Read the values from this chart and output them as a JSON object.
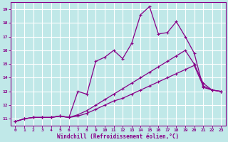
{
  "xlabel": "Windchill (Refroidissement éolien,°C)",
  "xlim": [
    -0.5,
    23.5
  ],
  "ylim": [
    10.5,
    19.5
  ],
  "xticks": [
    0,
    1,
    2,
    3,
    4,
    5,
    6,
    7,
    8,
    9,
    10,
    11,
    12,
    13,
    14,
    15,
    16,
    17,
    18,
    19,
    20,
    21,
    22,
    23
  ],
  "yticks": [
    11,
    12,
    13,
    14,
    15,
    16,
    17,
    18,
    19
  ],
  "background_color": "#c0e8e8",
  "line_color": "#880088",
  "grid_color": "#a0d0d0",
  "series": [
    {
      "x": [
        0,
        1,
        2,
        3,
        4,
        5,
        6,
        7,
        8,
        9,
        10,
        11,
        12,
        13,
        14,
        15,
        16,
        17,
        18,
        19,
        20,
        21,
        22,
        23
      ],
      "y": [
        10.8,
        11.0,
        11.1,
        11.1,
        11.1,
        11.2,
        11.1,
        13.0,
        12.8,
        15.2,
        15.5,
        16.0,
        15.4,
        16.5,
        18.6,
        19.2,
        17.2,
        17.3,
        18.1,
        17.0,
        15.8,
        13.3,
        13.1,
        13.0
      ]
    },
    {
      "x": [
        0,
        1,
        2,
        3,
        4,
        5,
        6,
        7,
        8,
        9,
        10,
        11,
        12,
        13,
        14,
        15,
        16,
        17,
        18,
        19,
        20,
        21,
        22,
        23
      ],
      "y": [
        10.8,
        11.0,
        11.1,
        11.1,
        11.1,
        11.2,
        11.1,
        11.3,
        11.6,
        12.0,
        12.4,
        12.8,
        13.2,
        13.6,
        14.0,
        14.4,
        14.8,
        15.2,
        15.6,
        16.0,
        15.0,
        13.6,
        13.1,
        13.0
      ]
    },
    {
      "x": [
        0,
        1,
        2,
        3,
        4,
        5,
        6,
        7,
        8,
        9,
        10,
        11,
        12,
        13,
        14,
        15,
        16,
        17,
        18,
        19,
        20,
        21,
        22,
        23
      ],
      "y": [
        10.8,
        11.0,
        11.1,
        11.1,
        11.1,
        11.2,
        11.1,
        11.2,
        11.4,
        11.7,
        12.0,
        12.3,
        12.5,
        12.8,
        13.1,
        13.4,
        13.7,
        14.0,
        14.3,
        14.6,
        14.9,
        13.4,
        13.1,
        13.0
      ]
    }
  ]
}
